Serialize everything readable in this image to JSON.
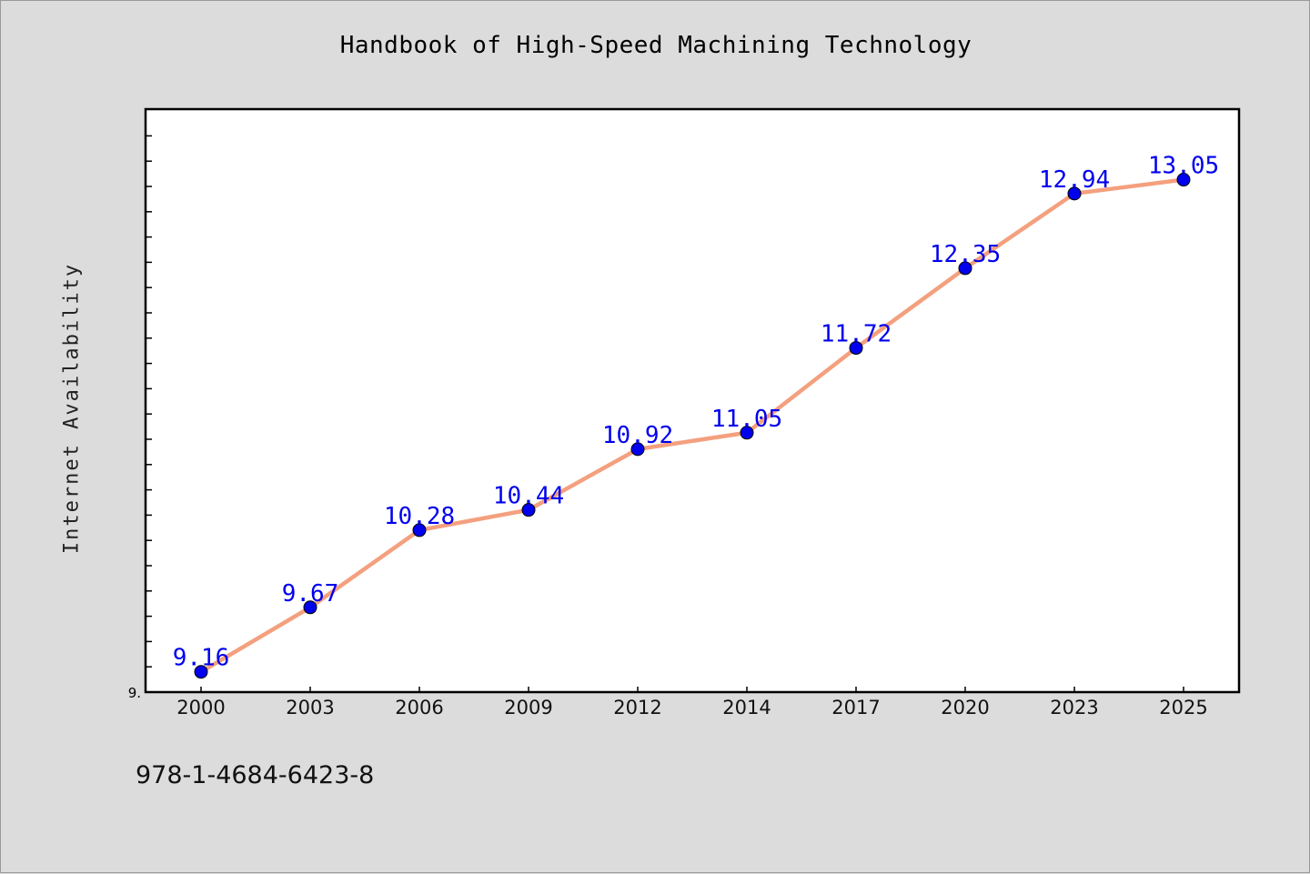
{
  "chart_data": {
    "type": "line",
    "title": "Handbook of High-Speed Machining Technology",
    "xlabel": "",
    "ylabel": "Internet Availability",
    "categories": [
      "2000",
      "2003",
      "2006",
      "2009",
      "2012",
      "2014",
      "2017",
      "2020",
      "2023",
      "2025"
    ],
    "values": [
      9.16,
      9.67,
      10.28,
      10.44,
      10.92,
      11.05,
      11.72,
      12.35,
      12.94,
      13.05
    ],
    "data_labels": [
      "9.16",
      "9.67",
      "10.28",
      "10.44",
      "10.92",
      "11.05",
      "11.72",
      "12.35",
      "12.94",
      "13.05"
    ],
    "y_tick_label": "9.",
    "ylim": [
      9.0,
      13.6
    ],
    "grid": false,
    "legend": "none",
    "line_color": "#f4a07e",
    "marker_color": "#0000ee",
    "label_color": "#0000ee"
  },
  "footer": {
    "isbn": "978-1-4684-6423-8"
  }
}
